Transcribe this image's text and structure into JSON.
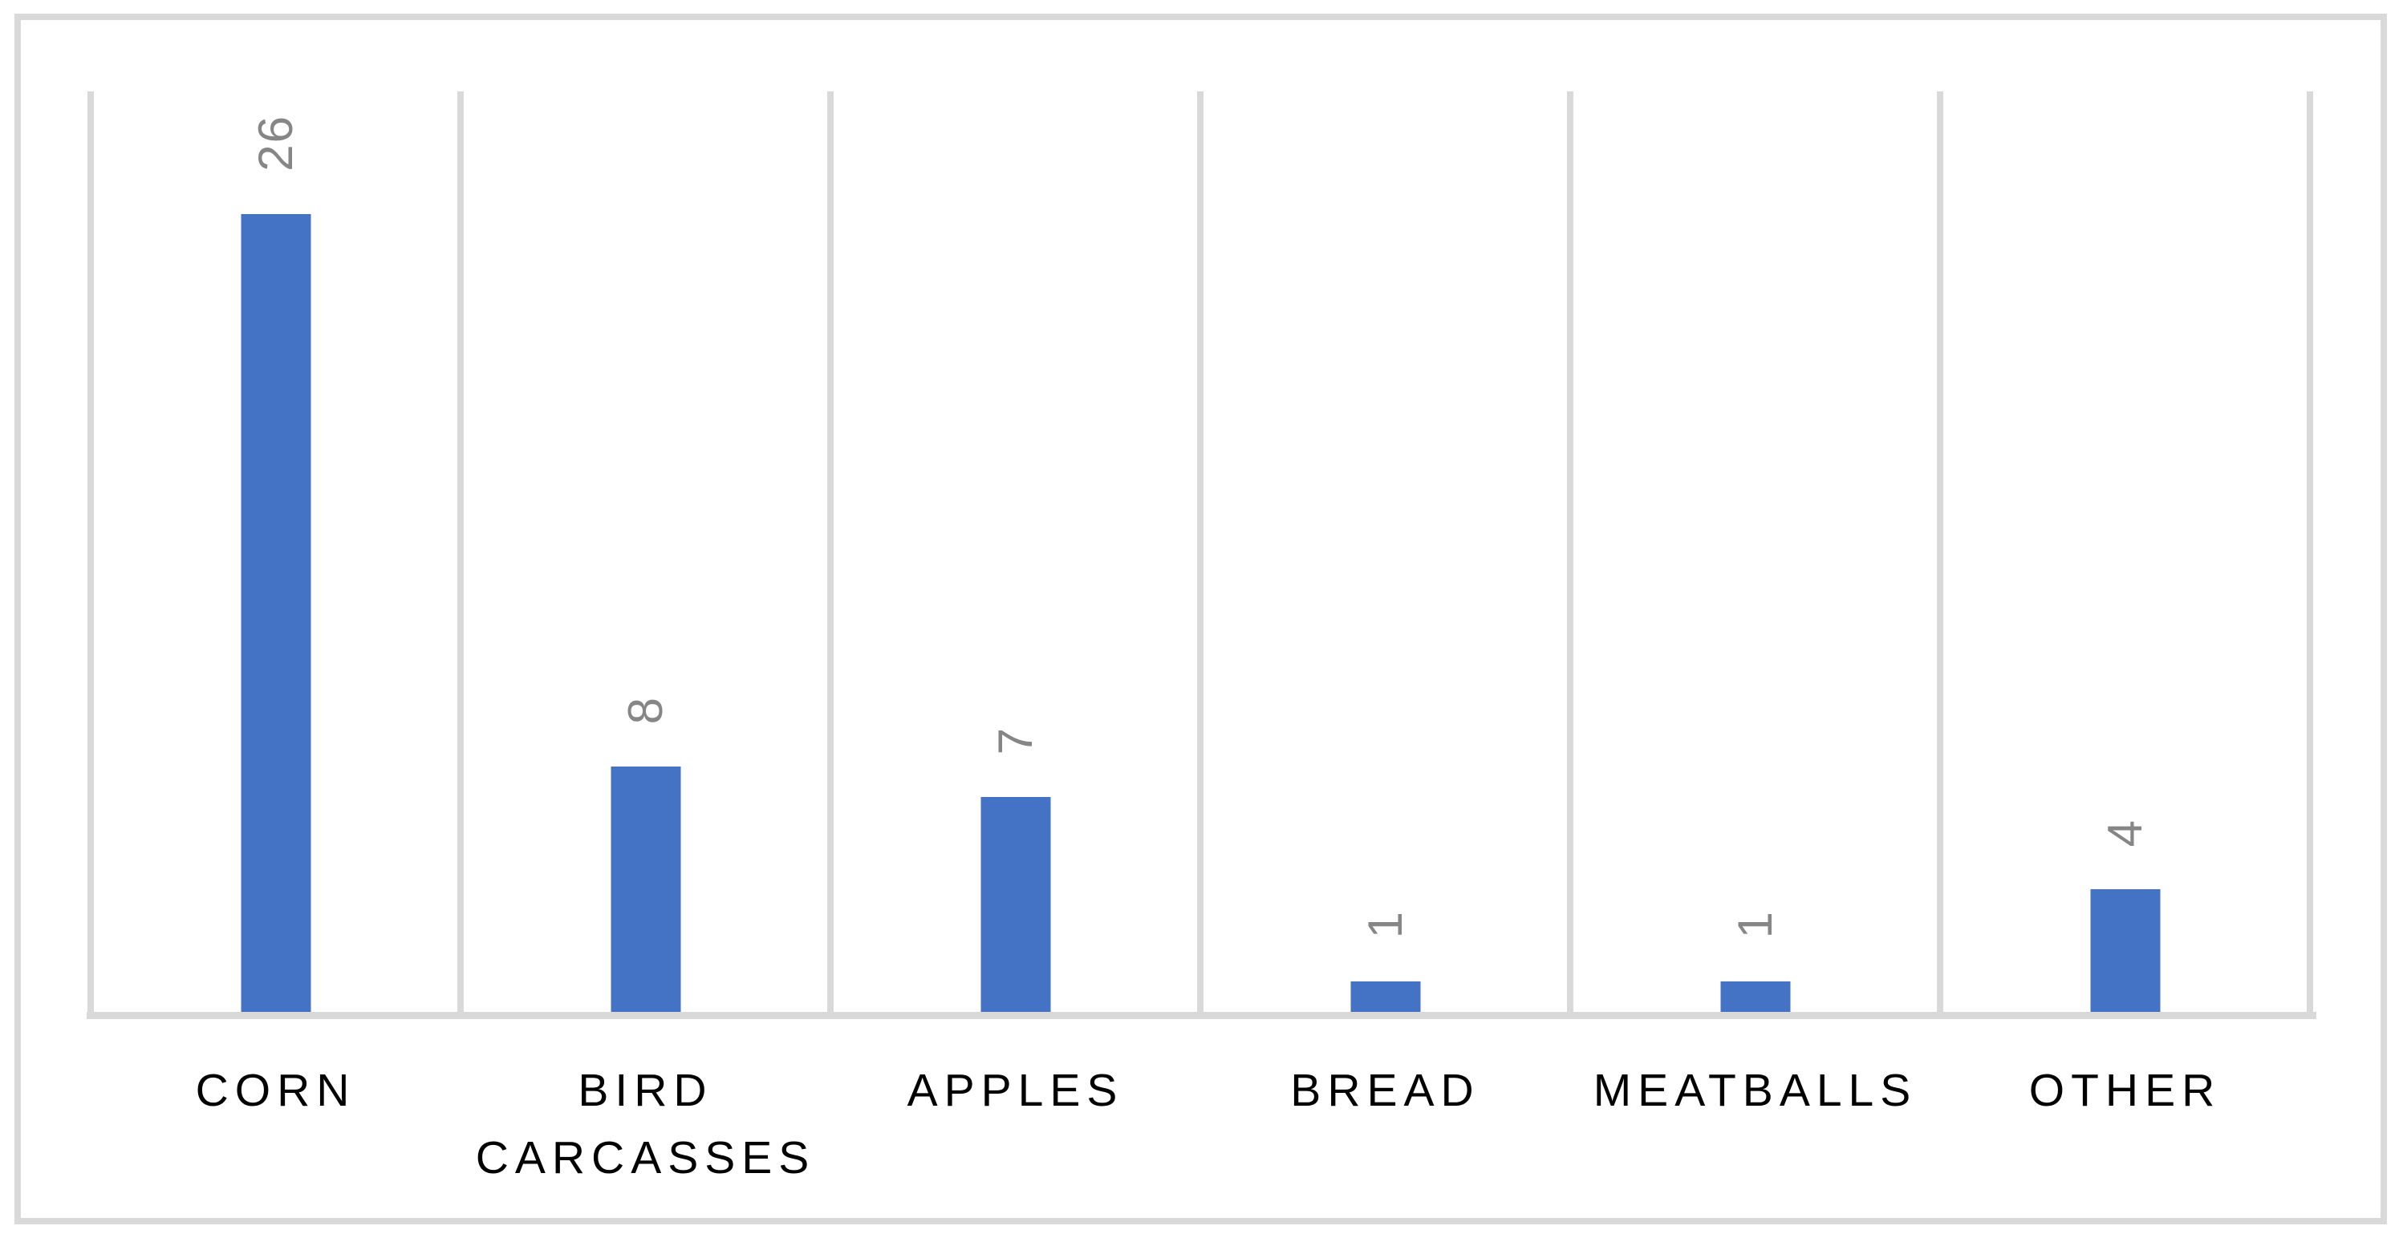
{
  "chart_data": {
    "type": "bar",
    "categories": [
      "CORN",
      "BIRD CARCASSES",
      "APPLES",
      "BREAD",
      "MEATBALLS",
      "OTHER"
    ],
    "values": [
      26,
      8,
      7,
      1,
      1,
      4
    ],
    "title": "",
    "xlabel": "",
    "ylabel": "",
    "ylim": [
      0,
      30
    ],
    "legend_position": "none",
    "data_labels": {
      "visible": true,
      "rotation_deg": -90,
      "position": "outside-end",
      "values_shown": [
        "26",
        "8",
        "7",
        "1",
        "1",
        "4"
      ]
    },
    "gridlines": {
      "vertical": true,
      "horizontal": false,
      "count": 7
    },
    "colors": {
      "bar_fill": "#4472C4",
      "gridline": "#D9D9D9",
      "axis_line": "#D9D9D9",
      "frame_border": "#D9D9D9",
      "data_label_text": "#868686",
      "category_label_text": "#000000",
      "background": "#FFFFFF"
    }
  }
}
